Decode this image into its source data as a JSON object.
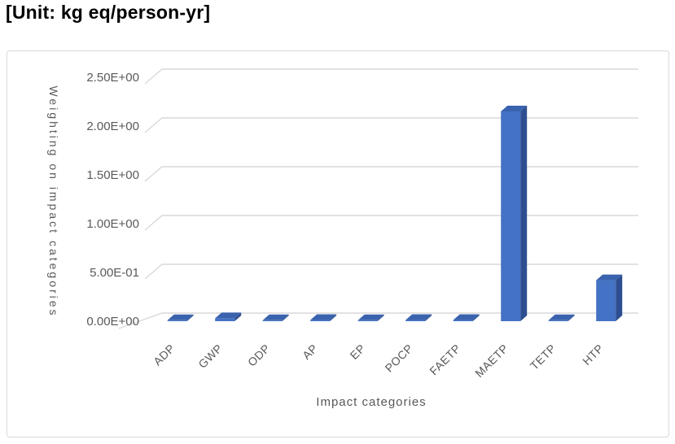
{
  "page": {
    "title": "[Unit: kg eq/person-yr]"
  },
  "chart_data": {
    "type": "bar",
    "style": "3d-column",
    "title": "",
    "xlabel": "Impact categories",
    "ylabel": "Weighting on impact categories",
    "categories": [
      "ADP",
      "GWP",
      "ODP",
      "AP",
      "EP",
      "POCP",
      "FAETP",
      "MAETP",
      "TETP",
      "HTP"
    ],
    "values": [
      0.01,
      0.03,
      0.01,
      0.012,
      0.01,
      0.012,
      0.012,
      2.15,
      0.01,
      0.42
    ],
    "y_tick_labels": [
      "0.00E+00",
      "5.00E-01",
      "1.00E+00",
      "1.50E+00",
      "2.00E+00",
      "2.50E+00"
    ],
    "y_tick_values": [
      0,
      0.5,
      1.0,
      1.5,
      2.0,
      2.5
    ],
    "ylim": [
      0,
      2.5
    ],
    "grid": true,
    "legend": false,
    "colors": {
      "bar_front": "#4472c4",
      "bar_top": "#3a62ae",
      "bar_side": "#2d4f91",
      "gridline": "#d9d9d9",
      "axis_label": "#595959",
      "frame_border": "#d9d9d9",
      "background": "#ffffff"
    }
  }
}
